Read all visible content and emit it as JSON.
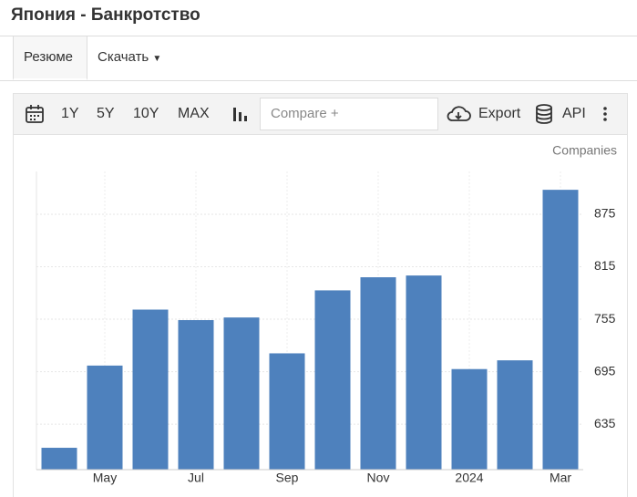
{
  "header": {
    "title": "Япония - Банкротство"
  },
  "tabs": [
    "Резюме",
    "Скачать"
  ],
  "toolbar": {
    "ranges": [
      "1Y",
      "5Y",
      "10Y",
      "MAX"
    ],
    "compare": "Compare +",
    "export": "Export",
    "api": "API"
  },
  "chart_data": {
    "type": "bar",
    "y_label": "Companies",
    "categories": [
      null,
      "May",
      null,
      "Jul",
      null,
      "Sep",
      null,
      "Nov",
      null,
      "2024",
      null,
      "Mar"
    ],
    "values": [
      608,
      702,
      766,
      754,
      757,
      716,
      788,
      803,
      805,
      698,
      708,
      903
    ],
    "color": "#4e81bd",
    "ylim": [
      583,
      924
    ],
    "yticks": [
      635,
      695,
      755,
      815,
      875
    ],
    "grid": true
  }
}
